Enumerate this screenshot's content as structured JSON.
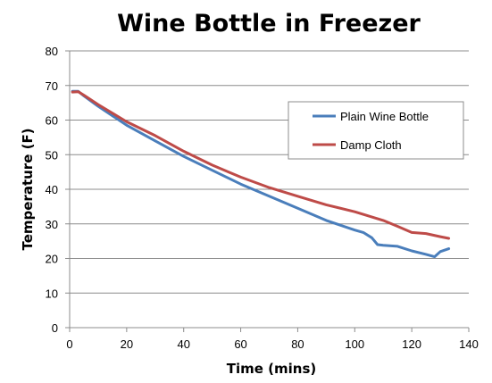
{
  "chart_data": {
    "type": "line",
    "title": "Wine Bottle in Freezer",
    "xlabel": "Time (mins)",
    "ylabel": "Temperature (F)",
    "xlim": [
      0,
      140
    ],
    "ylim": [
      0,
      80
    ],
    "xticks": [
      "0",
      "20",
      "40",
      "60",
      "80",
      "100",
      "120",
      "140"
    ],
    "yticks": [
      "0",
      "10",
      "20",
      "30",
      "40",
      "50",
      "60",
      "70",
      "80"
    ],
    "grid": "horizontal",
    "legend_position": "right",
    "series": [
      {
        "name": "Plain Wine Bottle",
        "color": "#4a7ebb",
        "x": [
          1,
          3,
          5,
          10,
          20,
          30,
          40,
          50,
          60,
          70,
          80,
          90,
          100,
          103,
          106,
          108,
          110,
          115,
          120,
          125,
          128,
          130,
          133
        ],
        "y": [
          68.3,
          68.3,
          67,
          64,
          58.5,
          54,
          49.5,
          45.5,
          41.5,
          38,
          34.5,
          31,
          28.2,
          27.5,
          26,
          24,
          23.8,
          23.5,
          22.2,
          21.2,
          20.5,
          22,
          22.8
        ]
      },
      {
        "name": "Damp Cloth",
        "color": "#be4b48",
        "x": [
          1,
          3,
          5,
          10,
          20,
          30,
          40,
          50,
          60,
          70,
          80,
          90,
          100,
          110,
          115,
          120,
          125,
          130,
          133
        ],
        "y": [
          68.1,
          68.2,
          67.2,
          64.5,
          59.5,
          55.5,
          51,
          47,
          43.5,
          40.5,
          38,
          35.5,
          33.5,
          31,
          29.3,
          27.5,
          27.2,
          26.3,
          25.8
        ]
      }
    ]
  }
}
